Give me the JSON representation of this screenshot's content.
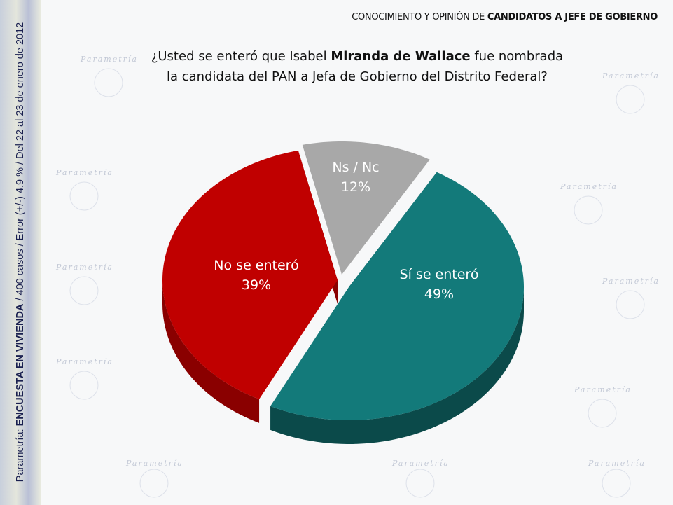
{
  "header": {
    "prefix": "CONOCIMIENTO Y OPINIÓN DE ",
    "bold": "CANDIDATOS A JEFE DE GOBIERNO"
  },
  "question": {
    "part1": "¿Usted se enteró que Isabel ",
    "bold": "Miranda de Wallace",
    "part2": " fue nombrada",
    "line2": "la candidata del PAN a Jefa de Gobierno del Distrito Federal?"
  },
  "source": {
    "prefix": "Parametría: ",
    "bold": "ENCUESTA EN VIVIENDA",
    "rest": " / 400 casos / Error (+/-) 4.9 % / Del 22 al 23 de enero de 2012"
  },
  "watermark": "Parametría",
  "chart_data": {
    "type": "pie",
    "title": "¿Usted se enteró que Isabel Miranda de Wallace fue nombrada la candidata del PAN a Jefa de Gobierno del Distrito Federal?",
    "categories": [
      "Ns / Nc",
      "Sí se enteró",
      "No se enteró"
    ],
    "values": [
      12,
      49,
      39
    ],
    "labels": [
      "12%",
      "49%",
      "39%"
    ],
    "colors": [
      "#a8a8a8",
      "#137a7a",
      "#c00000"
    ],
    "side_colors": [
      "#7a7a7a",
      "#0b4a4a",
      "#8a0000"
    ]
  }
}
